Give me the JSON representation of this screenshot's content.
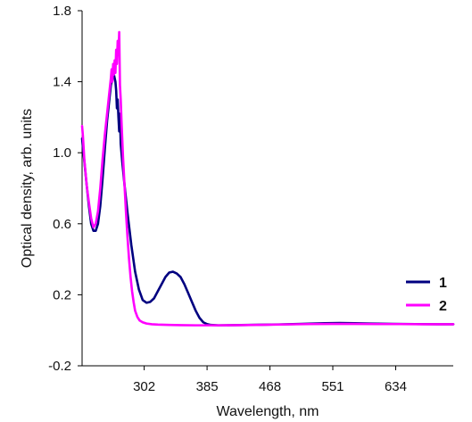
{
  "chart_data": {
    "type": "line",
    "xlabel": "Wavelength, nm",
    "ylabel": "Optical density, arb. units",
    "xlim": [
      220,
      710
    ],
    "ylim": [
      -0.2,
      1.8
    ],
    "x_ticks": [
      302,
      385,
      468,
      551,
      634
    ],
    "y_ticks": [
      -0.2,
      0.2,
      0.6,
      1.0,
      1.4,
      1.8
    ],
    "y_tick_labels": [
      "-0.2",
      "0.2",
      "0.6",
      "1.0",
      "1.4",
      "1.8"
    ],
    "x_tick_labels": [
      "302",
      "385",
      "468",
      "551",
      "634"
    ],
    "grid": false,
    "legend_position": "right",
    "series": [
      {
        "name": "1",
        "color": "#000080",
        "points": [
          [
            220,
            1.08
          ],
          [
            223,
            0.95
          ],
          [
            226,
            0.82
          ],
          [
            229,
            0.7
          ],
          [
            232,
            0.6
          ],
          [
            235,
            0.56
          ],
          [
            238,
            0.56
          ],
          [
            241,
            0.6
          ],
          [
            244,
            0.7
          ],
          [
            247,
            0.85
          ],
          [
            250,
            1.02
          ],
          [
            253,
            1.18
          ],
          [
            256,
            1.3
          ],
          [
            258,
            1.38
          ],
          [
            260,
            1.42
          ],
          [
            262,
            1.44
          ],
          [
            264,
            1.4
          ],
          [
            265,
            1.35
          ],
          [
            266,
            1.25
          ],
          [
            267,
            1.3
          ],
          [
            268,
            1.2
          ],
          [
            269,
            1.12
          ],
          [
            270,
            1.22
          ],
          [
            271,
            1.05
          ],
          [
            273,
            0.95
          ],
          [
            276,
            0.82
          ],
          [
            280,
            0.66
          ],
          [
            285,
            0.48
          ],
          [
            290,
            0.33
          ],
          [
            295,
            0.23
          ],
          [
            300,
            0.17
          ],
          [
            305,
            0.155
          ],
          [
            310,
            0.16
          ],
          [
            315,
            0.18
          ],
          [
            320,
            0.22
          ],
          [
            325,
            0.26
          ],
          [
            330,
            0.3
          ],
          [
            335,
            0.325
          ],
          [
            340,
            0.33
          ],
          [
            345,
            0.32
          ],
          [
            350,
            0.3
          ],
          [
            355,
            0.26
          ],
          [
            360,
            0.21
          ],
          [
            365,
            0.16
          ],
          [
            370,
            0.11
          ],
          [
            375,
            0.07
          ],
          [
            380,
            0.045
          ],
          [
            385,
            0.035
          ],
          [
            390,
            0.03
          ],
          [
            400,
            0.028
          ],
          [
            420,
            0.029
          ],
          [
            450,
            0.031
          ],
          [
            480,
            0.033
          ],
          [
            510,
            0.036
          ],
          [
            540,
            0.04
          ],
          [
            560,
            0.041
          ],
          [
            580,
            0.04
          ],
          [
            600,
            0.038
          ],
          [
            630,
            0.036
          ],
          [
            660,
            0.035
          ],
          [
            690,
            0.034
          ],
          [
            710,
            0.034
          ]
        ]
      },
      {
        "name": "2",
        "color": "#ff00ff",
        "points": [
          [
            220,
            1.15
          ],
          [
            221,
            1.1
          ],
          [
            223,
            0.96
          ],
          [
            226,
            0.82
          ],
          [
            229,
            0.72
          ],
          [
            232,
            0.63
          ],
          [
            235,
            0.58
          ],
          [
            238,
            0.6
          ],
          [
            241,
            0.67
          ],
          [
            244,
            0.8
          ],
          [
            247,
            0.96
          ],
          [
            250,
            1.1
          ],
          [
            253,
            1.22
          ],
          [
            256,
            1.34
          ],
          [
            258,
            1.42
          ],
          [
            259,
            1.47
          ],
          [
            260,
            1.4
          ],
          [
            261,
            1.5
          ],
          [
            262,
            1.44
          ],
          [
            263,
            1.52
          ],
          [
            264,
            1.45
          ],
          [
            265,
            1.58
          ],
          [
            266,
            1.5
          ],
          [
            267,
            1.63
          ],
          [
            268,
            1.55
          ],
          [
            269,
            1.68
          ],
          [
            270,
            1.38
          ],
          [
            271,
            1.3
          ],
          [
            272,
            1.18
          ],
          [
            274,
            0.98
          ],
          [
            276,
            0.82
          ],
          [
            278,
            0.66
          ],
          [
            280,
            0.52
          ],
          [
            282,
            0.4
          ],
          [
            284,
            0.3
          ],
          [
            286,
            0.22
          ],
          [
            288,
            0.16
          ],
          [
            290,
            0.11
          ],
          [
            293,
            0.075
          ],
          [
            296,
            0.055
          ],
          [
            300,
            0.045
          ],
          [
            305,
            0.038
          ],
          [
            312,
            0.034
          ],
          [
            320,
            0.032
          ],
          [
            335,
            0.03
          ],
          [
            350,
            0.029
          ],
          [
            370,
            0.028
          ],
          [
            400,
            0.028
          ],
          [
            430,
            0.029
          ],
          [
            460,
            0.031
          ],
          [
            490,
            0.033
          ],
          [
            520,
            0.035
          ],
          [
            550,
            0.036
          ],
          [
            580,
            0.036
          ],
          [
            610,
            0.035
          ],
          [
            640,
            0.035
          ],
          [
            670,
            0.034
          ],
          [
            700,
            0.034
          ],
          [
            710,
            0.034
          ]
        ]
      }
    ]
  }
}
